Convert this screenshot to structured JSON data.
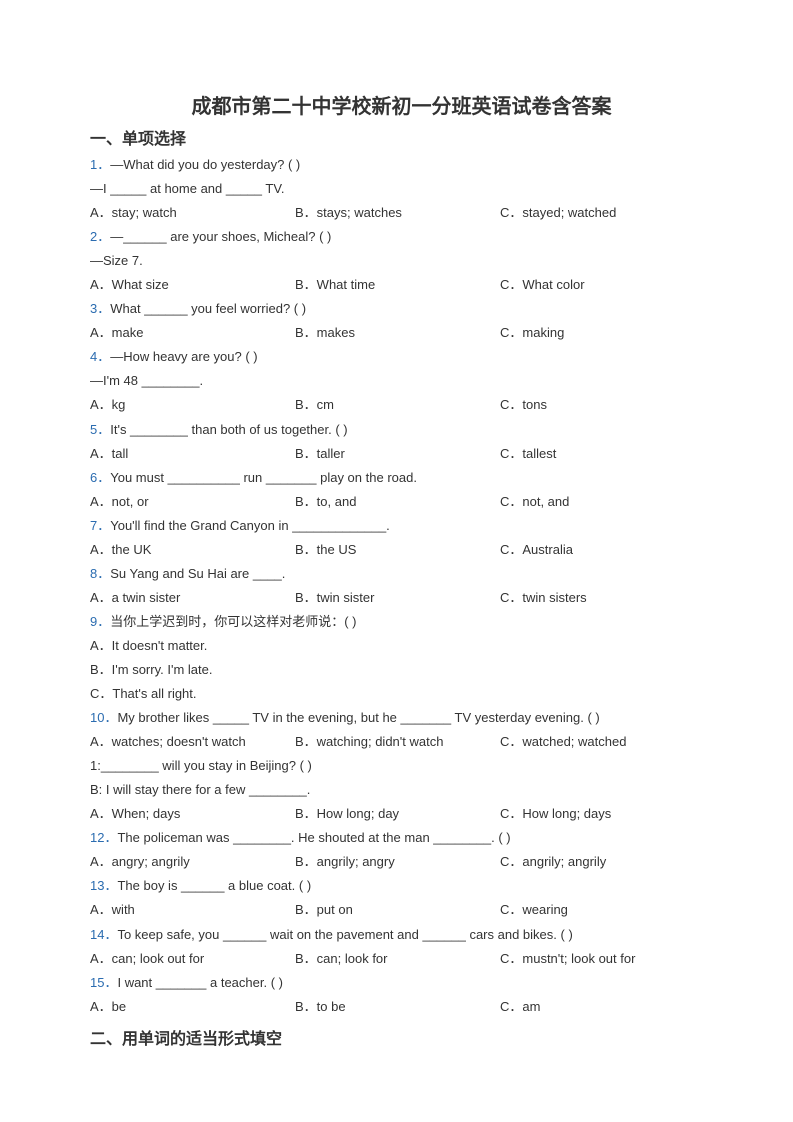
{
  "colors": {
    "text": "#333333",
    "question_number": "#2b6cb0",
    "background": "#ffffff"
  },
  "typography": {
    "title_fontsize": 20,
    "section_fontsize": 16,
    "body_fontsize": 13,
    "line_height": 1.85
  },
  "title": "成都市第二十中学校新初一分班英语试卷含答案",
  "section1_head": "一、单项选择",
  "section2_head": "二、用单词的适当形式填空",
  "questions": [
    {
      "num": "1．",
      "stem": "—What did you do yesterday? (    )",
      "extra": "—I _____ at home and _____ TV.",
      "opts": {
        "A": "A．stay; watch",
        "B": "B．stays; watches",
        "C": "C．stayed; watched"
      }
    },
    {
      "num": "2．",
      "stem": "—______ are your shoes, Micheal? (   )",
      "extra": "—Size 7.",
      "opts": {
        "A": "A．What size",
        "B": "B．What time",
        "C": "C．What color"
      }
    },
    {
      "num": "3．",
      "stem": "What ______ you feel worried? (    )",
      "opts": {
        "A": "A．make",
        "B": "B．makes",
        "C": "C．making"
      }
    },
    {
      "num": "4．",
      "stem": "—How heavy are you? (     )",
      "extra": "—I'm 48 ________.",
      "opts": {
        "A": "A．kg",
        "B": "B．cm",
        "C": "C．tons"
      }
    },
    {
      "num": "5．",
      "stem": "It's ________ than both of us together. (    )",
      "opts": {
        "A": "A．tall",
        "B": "B．taller",
        "C": "C．tallest"
      }
    },
    {
      "num": "6．",
      "stem": "You must __________ run _______ play on the road.",
      "opts": {
        "A": "A．not, or",
        "B": "B．to, and",
        "C": "C．not, and"
      }
    },
    {
      "num": "7．",
      "stem": "You'll find the Grand Canyon in _____________.",
      "opts": {
        "A": "A．the UK",
        "B": "B．the US",
        "C": "C．Australia"
      }
    },
    {
      "num": "8．",
      "stem": "Su Yang and Su Hai are ____.",
      "opts": {
        "A": "A．a twin sister",
        "B": "B．twin sister",
        "C": "C．twin sisters"
      }
    },
    {
      "num": "9．",
      "stem": "当你上学迟到时，你可以这样对老师说：(   )",
      "vopts": [
        "A．It doesn't matter.",
        "B．I'm sorry. I'm late.",
        "C．That's all right."
      ]
    },
    {
      "num": "10．",
      "stem": "My brother likes _____ TV in the evening, but he _______ TV yesterday evening. (    )",
      "opts": {
        "A": "A．watches; doesn't watch",
        "B": "B．watching; didn't watch",
        "C": "C．watched; watched"
      }
    },
    {
      "num": "1:",
      "stem": "________ will you stay in Beijing? (    )",
      "extra": "B: I will stay there for a few ________.",
      "no_color": true,
      "opts": {
        "A": "A．When; days",
        "B": "B．How long; day",
        "C": "C．How long; days"
      }
    },
    {
      "num": "12．",
      "stem": "The policeman was ________. He shouted at the man ________. (    )",
      "opts": {
        "A": "A．angry; angrily",
        "B": "B．angrily; angry",
        "C": "C．angrily; angrily"
      }
    },
    {
      "num": "13．",
      "stem": "The boy is ______ a blue coat. (   )",
      "opts": {
        "A": "A．with",
        "B": "B．put on",
        "C": "C．wearing"
      }
    },
    {
      "num": "14．",
      "stem": "To keep safe, you ______ wait on the pavement and ______ cars and bikes. (    )",
      "opts": {
        "A": "A．can; look out for",
        "B": "B．can; look for",
        "C": "C．mustn't; look out for"
      }
    },
    {
      "num": "15．",
      "stem": "I want _______ a teacher. (     )",
      "opts": {
        "A": "A．be",
        "B": "B．to be",
        "C": "C．am"
      }
    }
  ]
}
